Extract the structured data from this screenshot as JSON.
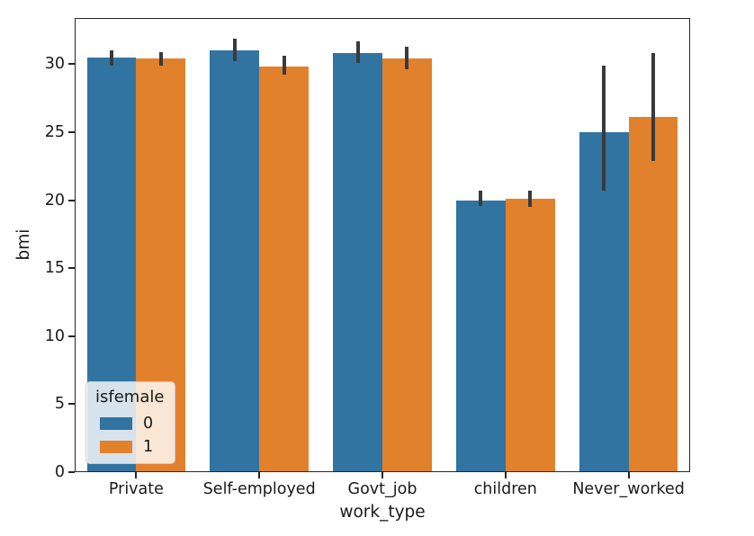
{
  "chart_data": {
    "type": "bar",
    "title": "",
    "xlabel": "work_type",
    "ylabel": "bmi",
    "categories": [
      "Private",
      "Self-employed",
      "Govt_job",
      "children",
      "Never_worked"
    ],
    "series": [
      {
        "name": "0",
        "color": "#3274a1",
        "values": [
          30.5,
          31.0,
          30.8,
          20.0,
          25.0
        ],
        "ci": [
          [
            29.9,
            31.0
          ],
          [
            30.2,
            31.9
          ],
          [
            30.1,
            31.7
          ],
          [
            19.6,
            20.7
          ],
          [
            20.7,
            29.9
          ]
        ]
      },
      {
        "name": "1",
        "color": "#e1812c",
        "values": [
          30.4,
          29.8,
          30.4,
          20.1,
          26.1
        ],
        "ci": [
          [
            29.9,
            30.9
          ],
          [
            29.2,
            30.6
          ],
          [
            29.6,
            31.3
          ],
          [
            19.5,
            20.7
          ],
          [
            22.9,
            30.8
          ]
        ]
      }
    ],
    "ylim": [
      0,
      33.4
    ],
    "yticks": [
      0,
      5,
      10,
      15,
      20,
      25,
      30
    ],
    "legend": {
      "title": "isfemale",
      "entries": [
        "0",
        "1"
      ],
      "position": "lower-left"
    },
    "error_bar_color": "#3a3a3a",
    "grid": false,
    "bar_group_width": 0.8
  }
}
